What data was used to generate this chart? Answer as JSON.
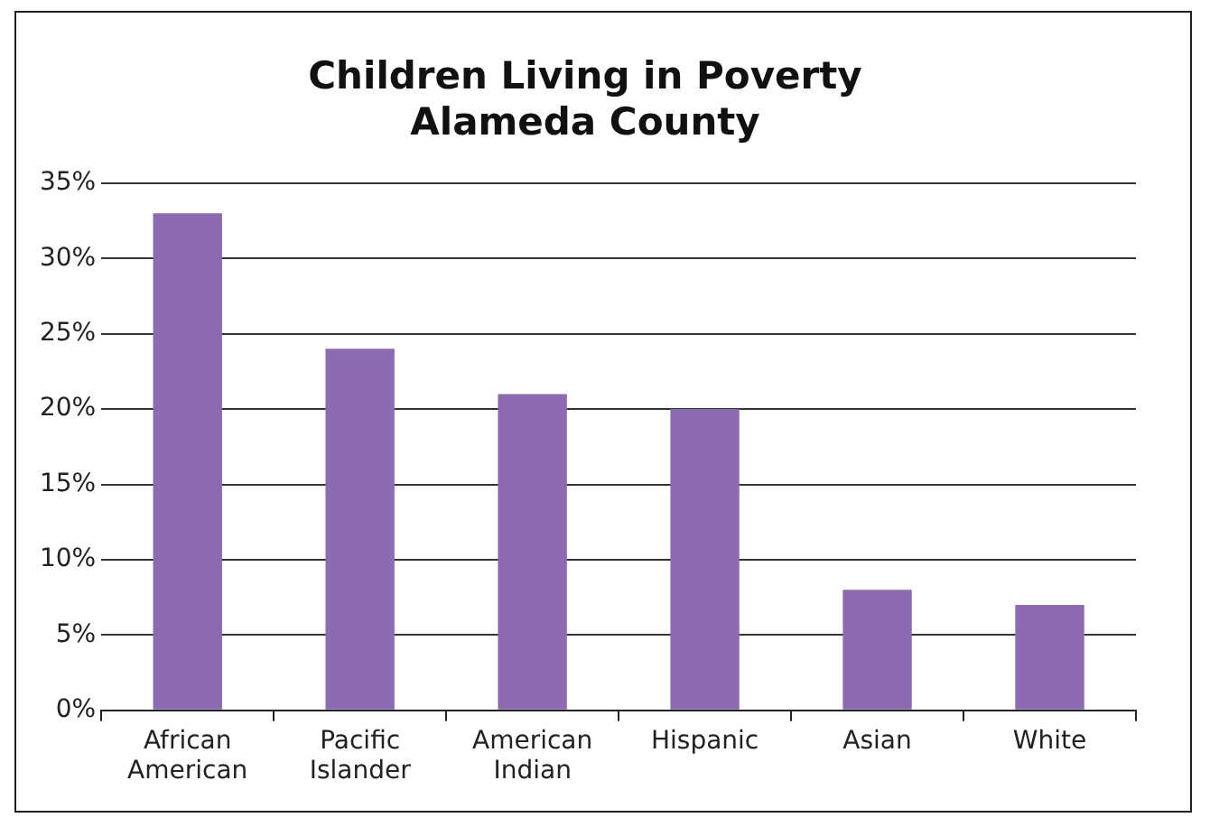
{
  "chart_data": {
    "type": "bar",
    "title": "Children Living in Poverty\nAlameda County",
    "categories": [
      "African American",
      "Pacific Islander",
      "American Indian",
      "Hispanic",
      "Asian",
      "White"
    ],
    "values": [
      33,
      24,
      21,
      20,
      8,
      7
    ],
    "color": "#8c6bb1",
    "ylim": [
      0,
      35
    ],
    "yticks": [
      {
        "value": 0,
        "label": "0%"
      },
      {
        "value": 5,
        "label": "5%"
      },
      {
        "value": 10,
        "label": "10%"
      },
      {
        "value": 15,
        "label": "15%"
      },
      {
        "value": 20,
        "label": "20%"
      },
      {
        "value": 25,
        "label": "25%"
      },
      {
        "value": 30,
        "label": "30%"
      },
      {
        "value": 35,
        "label": "35%"
      }
    ],
    "grid": "y"
  }
}
